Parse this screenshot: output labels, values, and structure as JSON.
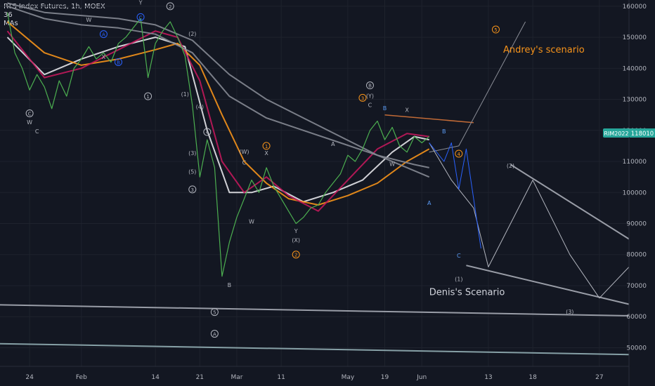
{
  "header": {
    "instrument": "RTS Index Futures, 1h, MOEX",
    "legend_lines": [
      "36",
      "MAs"
    ]
  },
  "price_tag": {
    "ticker": "RIM2022",
    "value": "118010",
    "color": "#26a69a"
  },
  "chart_data": {
    "type": "line",
    "price_axis": {
      "ticks": [
        50000,
        60000,
        70000,
        80000,
        90000,
        100000,
        110000,
        120000,
        130000,
        140000,
        150000,
        160000
      ],
      "labels": [
        "50000",
        "60000",
        "70000",
        "80000",
        "90000",
        "100000",
        "110000",
        "120000",
        "130000",
        "140000",
        "150000",
        "160000"
      ],
      "ylim": [
        44000,
        162000
      ]
    },
    "time_axis": {
      "labels": [
        "24",
        "Feb",
        "14",
        "21",
        "Mar",
        "11",
        "May",
        "19",
        "Jun",
        "13",
        "18",
        "27"
      ],
      "positions": [
        3,
        10,
        20,
        26,
        31,
        37,
        46,
        51,
        56,
        65,
        71,
        80
      ],
      "xlim": [
        -1,
        84
      ]
    },
    "price_series": {
      "name": "RIM2022",
      "x": [
        0,
        1,
        2,
        3,
        4,
        5,
        6,
        7,
        8,
        9,
        10,
        11,
        12,
        13,
        14,
        15,
        16,
        17,
        18,
        19,
        20,
        21,
        22,
        23,
        24,
        25,
        26,
        27,
        28,
        29,
        30,
        31,
        32,
        33,
        34,
        35,
        36,
        37,
        38,
        39,
        40,
        41,
        42,
        43,
        44,
        45,
        46,
        47,
        48,
        49,
        50,
        51,
        52,
        53,
        54,
        55,
        56,
        57
      ],
      "y": [
        158000,
        145000,
        140000,
        133000,
        138000,
        134000,
        127000,
        136000,
        131000,
        140000,
        143000,
        147000,
        143000,
        145000,
        142000,
        148000,
        150000,
        153000,
        156000,
        137000,
        148000,
        152000,
        155000,
        150000,
        144000,
        128000,
        105000,
        117000,
        108000,
        73000,
        84000,
        92000,
        98000,
        104000,
        100000,
        108000,
        102000,
        98000,
        94000,
        90000,
        92000,
        95000,
        96000,
        100000,
        103000,
        106000,
        112000,
        110000,
        114000,
        120000,
        123000,
        117000,
        121000,
        115000,
        113000,
        118000,
        116000,
        118000
      ]
    },
    "moving_averages": [
      {
        "color": "#e5e5ea",
        "x": [
          0,
          5,
          10,
          15,
          20,
          24,
          27,
          30,
          33,
          36,
          40,
          44,
          48,
          52,
          55,
          57
        ],
        "y": [
          150000,
          138000,
          143000,
          147000,
          150000,
          147000,
          120000,
          100000,
          100000,
          102000,
          97000,
          100000,
          104000,
          113000,
          118000,
          117000
        ]
      },
      {
        "color": "#f7931a",
        "x": [
          0,
          5,
          10,
          15,
          20,
          23,
          26,
          29,
          32,
          35,
          38,
          42,
          46,
          50,
          54,
          57
        ],
        "y": [
          155000,
          145000,
          141000,
          143000,
          146000,
          148000,
          141000,
          125000,
          110000,
          103000,
          98000,
          96000,
          99000,
          103000,
          110000,
          114000
        ]
      },
      {
        "color": "#c2185b",
        "x": [
          0,
          5,
          10,
          15,
          20,
          23,
          26,
          29,
          32,
          35,
          38,
          42,
          46,
          50,
          54,
          57
        ],
        "y": [
          152000,
          137000,
          140000,
          146000,
          152000,
          150000,
          136000,
          110000,
          100000,
          105000,
          99000,
          94000,
          104000,
          114000,
          119000,
          118000
        ]
      },
      {
        "color": "#868993",
        "x": [
          0,
          5,
          10,
          15,
          20,
          25,
          30,
          35,
          40,
          45,
          50,
          55,
          57
        ],
        "y": [
          160000,
          156000,
          154000,
          153000,
          151000,
          145000,
          131000,
          124000,
          120000,
          116000,
          112000,
          109000,
          108000
        ]
      },
      {
        "color": "#868993",
        "x": [
          0,
          5,
          10,
          15,
          20,
          25,
          30,
          35,
          40,
          45,
          50,
          55,
          57
        ],
        "y": [
          161000,
          158000,
          157000,
          156000,
          154000,
          149000,
          138000,
          130000,
          124000,
          118000,
          112000,
          107000,
          105000
        ]
      }
    ],
    "trendlines": [
      {
        "color": "#b2b5be",
        "width": 2,
        "x": [
          -1,
          84
        ],
        "y": [
          63800,
          60300
        ]
      },
      {
        "color": "#9bb8bd",
        "width": 2,
        "x": [
          -1,
          84
        ],
        "y": [
          51300,
          47800
        ]
      },
      {
        "color": "#b2b5be",
        "width": 2,
        "x": [
          62,
          84
        ],
        "y": [
          76500,
          64000
        ]
      },
      {
        "color": "#b2b5be",
        "width": 2,
        "x": [
          68,
          84
        ],
        "y": [
          109000,
          85000
        ]
      },
      {
        "color": "#e0793a",
        "width": 1.5,
        "x": [
          51,
          63
        ],
        "y": [
          125000,
          122500
        ]
      }
    ],
    "scenarios": [
      {
        "name": "Andrey's scenario",
        "color": "#8a8d96",
        "x": [
          57,
          61,
          70
        ],
        "y": [
          113000,
          115000,
          155000
        ]
      },
      {
        "name": "Denis's Scenario",
        "color": "#b2b5be",
        "x": [
          57,
          60,
          63,
          65,
          71,
          76,
          80,
          84
        ],
        "y": [
          116000,
          104000,
          95000,
          76000,
          104000,
          80000,
          66000,
          76000
        ]
      },
      {
        "name": "",
        "color": "#2962ff",
        "x": [
          57,
          59,
          60,
          61,
          62,
          64
        ],
        "y": [
          116000,
          110000,
          116000,
          101000,
          114000,
          82000
        ]
      }
    ],
    "wave_labels": [
      {
        "text": "W",
        "x": 11,
        "y": 155000,
        "color": "#b2b5be"
      },
      {
        "text": "W",
        "x": 3,
        "y": 122000,
        "color": "#b2b5be"
      },
      {
        "text": "C",
        "x": 4,
        "y": 119000,
        "color": "#b2b5be"
      },
      {
        "text": "X",
        "x": 13,
        "y": 143000,
        "color": "#b2b5be"
      },
      {
        "text": "Y",
        "x": 18,
        "y": 160500,
        "color": "#b2b5be"
      },
      {
        "text": "(1)",
        "x": 24,
        "y": 131000,
        "color": "#b2b5be"
      },
      {
        "text": "(2)",
        "x": 25,
        "y": 150500,
        "color": "#b2b5be"
      },
      {
        "text": "(3)",
        "x": 25,
        "y": 112000,
        "color": "#b2b5be"
      },
      {
        "text": "(4)",
        "x": 26,
        "y": 127000,
        "color": "#b2b5be"
      },
      {
        "text": "(5)",
        "x": 25,
        "y": 106000,
        "color": "#b2b5be"
      },
      {
        "text": "(W)",
        "x": 32,
        "y": 112500,
        "color": "#b2b5be"
      },
      {
        "text": "C",
        "x": 32,
        "y": 109000,
        "color": "#b2b5be"
      },
      {
        "text": "W",
        "x": 33,
        "y": 90000,
        "color": "#b2b5be"
      },
      {
        "text": "X",
        "x": 35,
        "y": 112000,
        "color": "#b2b5be"
      },
      {
        "text": "(X)",
        "x": 39,
        "y": 84000,
        "color": "#b2b5be"
      },
      {
        "text": "Y",
        "x": 39,
        "y": 87000,
        "color": "#b2b5be"
      },
      {
        "text": "A",
        "x": 44,
        "y": 115000,
        "color": "#b2b5be"
      },
      {
        "text": "(Y)",
        "x": 49,
        "y": 130500,
        "color": "#b2b5be"
      },
      {
        "text": "C",
        "x": 49,
        "y": 127500,
        "color": "#b2b5be"
      },
      {
        "text": "X",
        "x": 54,
        "y": 126000,
        "color": "#b2b5be"
      },
      {
        "text": "W",
        "x": 52,
        "y": 108500,
        "color": "#b2b5be"
      },
      {
        "text": "B",
        "x": 51,
        "y": 126500,
        "color": "#5b9cf6"
      },
      {
        "text": "B",
        "x": 59,
        "y": 119000,
        "color": "#5b9cf6"
      },
      {
        "text": "A",
        "x": 57,
        "y": 96000,
        "color": "#5b9cf6"
      },
      {
        "text": "C",
        "x": 61,
        "y": 79000,
        "color": "#5b9cf6"
      },
      {
        "text": "(1)",
        "x": 61,
        "y": 71500,
        "color": "#b2b5be"
      },
      {
        "text": "(2)",
        "x": 68,
        "y": 108000,
        "color": "#b2b5be"
      },
      {
        "text": "(3)",
        "x": 76,
        "y": 61000,
        "color": "#b2b5be"
      },
      {
        "text": "B",
        "x": 30,
        "y": 69500,
        "color": "#b2b5be"
      }
    ],
    "circled_labels": [
      {
        "text": "C",
        "x": 18,
        "y": 156500,
        "color": "#2962ff"
      },
      {
        "text": "2",
        "x": 22,
        "y": 160000,
        "color": "#b2b5be"
      },
      {
        "text": "A",
        "x": 13,
        "y": 151000,
        "color": "#2962ff"
      },
      {
        "text": "B",
        "x": 15,
        "y": 142000,
        "color": "#2962ff"
      },
      {
        "text": "C",
        "x": 3,
        "y": 125500,
        "color": "#b2b5be"
      },
      {
        "text": "1",
        "x": 19,
        "y": 131000,
        "color": "#b2b5be"
      },
      {
        "text": "3",
        "x": 25,
        "y": 101000,
        "color": "#b2b5be"
      },
      {
        "text": "4",
        "x": 27,
        "y": 119500,
        "color": "#b2b5be"
      },
      {
        "text": "5",
        "x": 28,
        "y": 61500,
        "color": "#b2b5be"
      },
      {
        "text": "A",
        "x": 28,
        "y": 54500,
        "color": "#b2b5be"
      },
      {
        "text": "1",
        "x": 35,
        "y": 115000,
        "color": "#f7931a"
      },
      {
        "text": "2",
        "x": 39,
        "y": 80000,
        "color": "#f7931a"
      },
      {
        "text": "3",
        "x": 48,
        "y": 130500,
        "color": "#f7931a"
      },
      {
        "text": "B",
        "x": 49,
        "y": 134500,
        "color": "#b2b5be"
      },
      {
        "text": "4",
        "x": 61,
        "y": 112500,
        "color": "#f7931a"
      },
      {
        "text": "5",
        "x": 66,
        "y": 152500,
        "color": "#f7931a"
      }
    ],
    "annotations": [
      {
        "text": "Andrey's scenario",
        "x": 67,
        "y": 145000,
        "color": "#f7931a",
        "size": 13
      },
      {
        "text": "Denis's Scenario",
        "x": 57,
        "y": 67000,
        "color": "#d1d4dc",
        "size": 13
      }
    ]
  }
}
